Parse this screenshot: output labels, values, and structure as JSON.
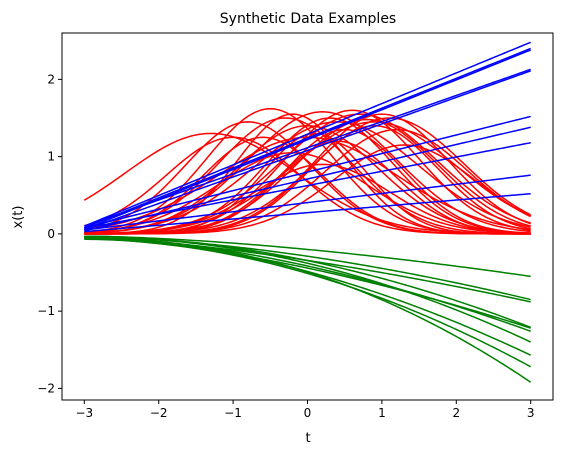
{
  "chart_data": {
    "type": "line",
    "title": "Synthetic Data Examples",
    "xlabel": "t",
    "ylabel": "x(t)",
    "xlim": [
      -3.3,
      3.3
    ],
    "ylim": [
      -2.15,
      2.6
    ],
    "xticks": [
      -3,
      -2,
      -1,
      0,
      1,
      2,
      3
    ],
    "xtick_labels": [
      "−3",
      "−2",
      "−1",
      "0",
      "1",
      "2",
      "3"
    ],
    "yticks": [
      -2,
      -1,
      0,
      1,
      2
    ],
    "ytick_labels": [
      "−2",
      "−1",
      "0",
      "1",
      "2"
    ],
    "grid": false,
    "legend": "none",
    "colors": {
      "red": "#ff0000",
      "blue": "#0000ff",
      "green": "#008000"
    },
    "t_range": [
      -3,
      3
    ],
    "series_groups": {
      "red_bumps": {
        "color": "red",
        "formula": "a * exp(-(t - c)^2 / (2 s^2))",
        "curves": [
          {
            "a": 1.3,
            "c": -1.3,
            "s": 1.15
          },
          {
            "a": 1.25,
            "c": -1.0,
            "s": 0.9
          },
          {
            "a": 1.45,
            "c": -0.8,
            "s": 0.85
          },
          {
            "a": 1.62,
            "c": -0.5,
            "s": 0.85
          },
          {
            "a": 1.25,
            "c": -0.6,
            "s": 0.8
          },
          {
            "a": 1.5,
            "c": -0.3,
            "s": 0.9
          },
          {
            "a": 1.55,
            "c": -0.2,
            "s": 0.75
          },
          {
            "a": 1.4,
            "c": 0.0,
            "s": 0.95
          },
          {
            "a": 1.58,
            "c": 0.2,
            "s": 1.0
          },
          {
            "a": 1.3,
            "c": 0.1,
            "s": 0.7
          },
          {
            "a": 1.5,
            "c": 0.3,
            "s": 0.85
          },
          {
            "a": 1.45,
            "c": 0.4,
            "s": 1.1
          },
          {
            "a": 1.35,
            "c": 0.5,
            "s": 0.8
          },
          {
            "a": 1.6,
            "c": 0.6,
            "s": 0.9
          },
          {
            "a": 1.55,
            "c": 0.7,
            "s": 1.05
          },
          {
            "a": 1.48,
            "c": 0.8,
            "s": 0.95
          },
          {
            "a": 1.4,
            "c": 0.9,
            "s": 0.85
          },
          {
            "a": 1.55,
            "c": 1.0,
            "s": 0.9
          },
          {
            "a": 1.5,
            "c": 1.1,
            "s": 1.0
          },
          {
            "a": 1.35,
            "c": 1.2,
            "s": 0.95
          },
          {
            "a": 1.45,
            "c": 0.9,
            "s": 1.1
          },
          {
            "a": 1.2,
            "c": 0.4,
            "s": 0.8
          },
          {
            "a": 1.05,
            "c": -0.2,
            "s": 1.0
          },
          {
            "a": 0.9,
            "c": 0.2,
            "s": 0.9
          },
          {
            "a": 1.15,
            "c": 1.3,
            "s": 0.95
          },
          {
            "a": 1.25,
            "c": 0.0,
            "s": 1.2
          }
        ]
      },
      "blue_lines": {
        "color": "blue",
        "note_formula": "linear from y0 at t=-3 to y1 at t=3",
        "curves": [
          {
            "y0": 0.1,
            "y1": 2.48
          },
          {
            "y0": 0.08,
            "y1": 2.4
          },
          {
            "y0": 0.06,
            "y1": 2.38
          },
          {
            "y0": 0.1,
            "y1": 2.13
          },
          {
            "y0": 0.05,
            "y1": 2.11
          },
          {
            "y0": 0.08,
            "y1": 1.52
          },
          {
            "y0": 0.04,
            "y1": 1.38
          },
          {
            "y0": 0.07,
            "y1": 1.18
          },
          {
            "y0": 0.05,
            "y1": 0.76
          },
          {
            "y0": 0.03,
            "y1": 0.52
          }
        ]
      },
      "green_curves": {
        "color": "green",
        "formula": "y0 + k * ((t + 3) / 6)^p",
        "curves": [
          {
            "y0": -0.03,
            "k": -0.52,
            "p": 1.6
          },
          {
            "y0": -0.04,
            "k": -0.81,
            "p": 1.7
          },
          {
            "y0": -0.05,
            "k": -0.83,
            "p": 1.5
          },
          {
            "y0": -0.03,
            "k": -1.18,
            "p": 1.9
          },
          {
            "y0": -0.06,
            "k": -1.16,
            "p": 1.6
          },
          {
            "y0": -0.04,
            "k": -1.36,
            "p": 2.0
          },
          {
            "y0": -0.05,
            "k": -1.52,
            "p": 1.8
          },
          {
            "y0": -0.07,
            "k": -1.65,
            "p": 1.9
          },
          {
            "y0": -0.06,
            "k": -1.86,
            "p": 2.1
          },
          {
            "y0": -0.04,
            "k": -1.22,
            "p": 1.7
          }
        ]
      }
    }
  }
}
